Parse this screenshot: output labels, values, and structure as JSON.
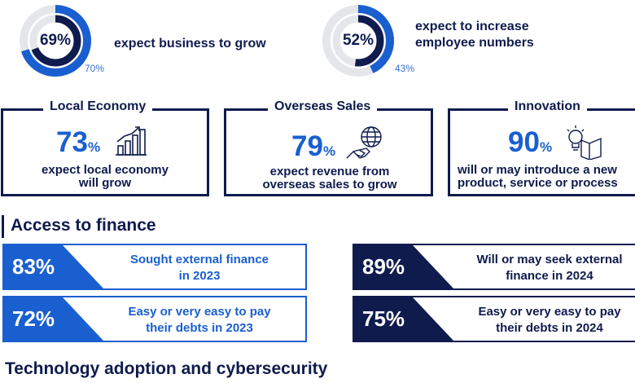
{
  "colors": {
    "navy": "#0f1b4d",
    "blue": "#1a5fcf",
    "light_blue": "#3b6fd0",
    "grey_ring": "#e4e6ea"
  },
  "stats_top": [
    {
      "value": "69%",
      "fraction": 0.69,
      "previous": "70%",
      "previous_fraction": 0.7,
      "text": "expect business to grow"
    },
    {
      "value": "52%",
      "fraction": 0.52,
      "previous": "43%",
      "previous_fraction": 0.43,
      "text_line1": "expect to increase",
      "text_line2": "employee numbers"
    }
  ],
  "boxes": [
    {
      "title": "Local Economy",
      "value": "73",
      "unit": "%",
      "icon": "bar-chart-growth-icon",
      "desc_line1": "expect local economy",
      "desc_line2": "will grow"
    },
    {
      "title": "Overseas Sales",
      "value": "79",
      "unit": "%",
      "icon": "globe-handshake-icon",
      "desc_line1": "expect revenue from",
      "desc_line2": "overseas sales to grow"
    },
    {
      "title": "Innovation",
      "value": "90",
      "unit": "%",
      "icon": "lightbulb-book-icon",
      "desc_line1": "will or may introduce a new",
      "desc_line2": "product, service or process"
    }
  ],
  "finance": {
    "title": "Access to finance",
    "items": [
      {
        "value": "83%",
        "line1": "Sought external finance",
        "line2": "in 2023",
        "color": "#1a5fcf"
      },
      {
        "value": "72%",
        "line1": "Easy or very easy to pay",
        "line2": "their debts in 2023",
        "color": "#1a5fcf"
      },
      {
        "value": "89%",
        "line1": "Will or may seek external",
        "line2": "finance in 2024",
        "color": "#0f1b4d"
      },
      {
        "value": "75%",
        "line1": "Easy or very easy to pay",
        "line2": "their debts in 2024",
        "color": "#0f1b4d"
      }
    ]
  },
  "tech": {
    "title": "Technology adoption and cybersecurity"
  }
}
